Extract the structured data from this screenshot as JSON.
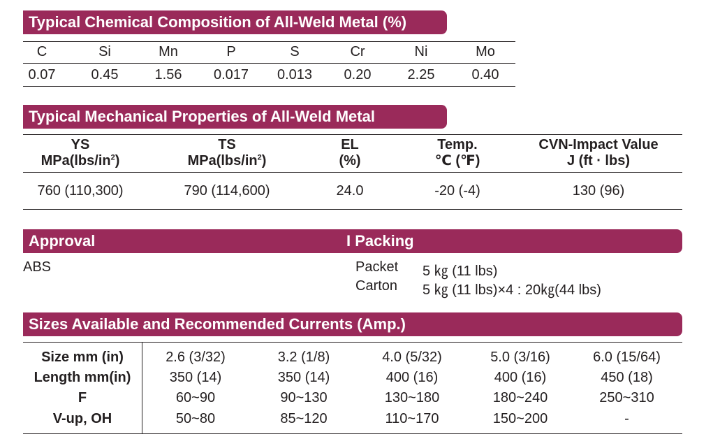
{
  "chem": {
    "title": "Typical Chemical Composition of All-Weld Metal (%)",
    "headers": [
      "C",
      "Si",
      "Mn",
      "P",
      "S",
      "Cr",
      "Ni",
      "Mo"
    ],
    "values": [
      "0.07",
      "0.45",
      "1.56",
      "0.017",
      "0.013",
      "0.20",
      "2.25",
      "0.40"
    ]
  },
  "mech": {
    "title": "Typical Mechanical Properties of All-Weld Metal",
    "headers": [
      {
        "line1": "YS",
        "line2": "MPa(lbs/in",
        "sup": "2",
        "line2_end": ")"
      },
      {
        "line1": "TS",
        "line2": "MPa(lbs/in",
        "sup": "2",
        "line2_end": ")"
      },
      {
        "line1": "EL",
        "line2": "(%)",
        "sup": "",
        "line2_end": ""
      },
      {
        "line1": "Temp.",
        "line2": "℃ (℉)",
        "sup": "",
        "line2_end": ""
      },
      {
        "line1": "CVN-Impact Value",
        "line2": "J (ft · lbs)",
        "sup": "",
        "line2_end": ""
      }
    ],
    "values": [
      "760 (110,300)",
      "790 (114,600)",
      "24.0",
      "-20 (-4)",
      "130 (96)"
    ]
  },
  "approval": {
    "title": "Approval",
    "text": "ABS"
  },
  "packing": {
    "title": "I Packing",
    "rows": [
      {
        "label": "Packet",
        "value": "5 ㎏ (11 lbs)"
      },
      {
        "label": "Carton",
        "value": "5 ㎏ (11 lbs)×4 : 20㎏(44 lbs)"
      }
    ]
  },
  "sizes": {
    "title": "Sizes Available and Recommended Currents (Amp.)",
    "rows": [
      {
        "label": "Size mm (in)",
        "values": [
          "2.6 (3/32)",
          "3.2 (1/8)",
          "4.0 (5/32)",
          "5.0 (3/16)",
          "6.0 (15/64)"
        ]
      },
      {
        "label": "Length mm(in)",
        "values": [
          "350 (14)",
          "350 (14)",
          "400 (16)",
          "400 (16)",
          "450 (18)"
        ]
      },
      {
        "label": "F",
        "values": [
          "60~90",
          "90~130",
          "130~180",
          "180~240",
          "250~310"
        ]
      },
      {
        "label": "V-up, OH",
        "values": [
          "50~80",
          "85~120",
          "110~170",
          "150~200",
          "-"
        ]
      }
    ]
  }
}
